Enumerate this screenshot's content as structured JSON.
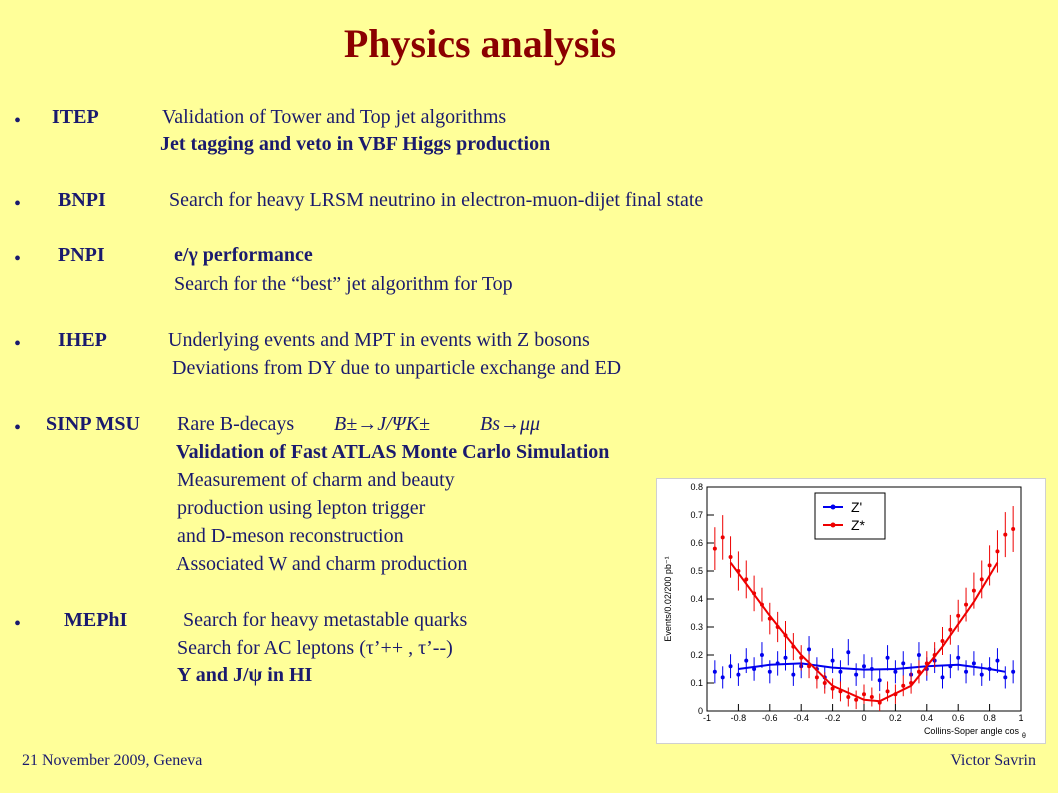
{
  "slide": {
    "title": "Physics analysis",
    "items": [
      {
        "bullet": "•",
        "institute": "ITEP",
        "lines": [
          "Validation of Tower and Top jet algorithms",
          "Jet tagging and veto in VBF Higgs production"
        ]
      },
      {
        "bullet": "•",
        "institute": "BNPI",
        "lines": [
          "Search for heavy LRSM neutrino in electron-muon-dijet final   state"
        ]
      },
      {
        "bullet": "•",
        "institute": "PNPI",
        "lines": [
          "e/γ performance",
          "Search for the “best” jet algorithm for Top"
        ]
      },
      {
        "bullet": "•",
        "institute": "IHEP",
        "lines": [
          "Underlying events and MPT in events with Z bosons",
          "Deviations from DY due to unparticle exchange and ED"
        ]
      },
      {
        "bullet": "•",
        "institute": "SINP MSU",
        "lines": [
          "Rare B-decays",
          "B±→J/ΨK±",
          "Bs→μμ",
          "Validation of Fast ATLAS Monte Carlo Simulation",
          "Measurement of charm and beauty",
          "production using lepton trigger",
          "and D-meson reconstruction",
          "Associated W and charm production"
        ]
      },
      {
        "bullet": "•",
        "institute": "MEPhI",
        "lines": [
          "Search for heavy metastable quarks",
          "Search for AC leptons (τ’++ , τ’--)",
          "Y and J/ψ in HI"
        ]
      }
    ],
    "footer_left": "21 November  2009, Geneva",
    "footer_right": "Victor Savrin"
  },
  "chart_data": {
    "type": "scatter",
    "ylabel": "Events/0.02/200 pb⁻¹",
    "xlabel": "Collins-Soper angle  cos",
    "xlabel_subscript": "θ",
    "xlim": [
      -1,
      1
    ],
    "ylim": [
      0,
      0.8
    ],
    "xticks": [
      "-1",
      "-0.8",
      "-0.6",
      "-0.4",
      "-0.2",
      "0",
      "0.2",
      "0.4",
      "0.6",
      "0.8",
      "1"
    ],
    "yticks": [
      "0",
      "0.1",
      "0.2",
      "0.3",
      "0.4",
      "0.5",
      "0.6",
      "0.7",
      "0.8"
    ],
    "legend_position": "top-right",
    "series": [
      {
        "name": "Z'",
        "color": "#0000ee",
        "x": [
          -0.95,
          -0.9,
          -0.85,
          -0.8,
          -0.75,
          -0.7,
          -0.65,
          -0.6,
          -0.55,
          -0.5,
          -0.45,
          -0.4,
          -0.35,
          -0.3,
          -0.25,
          -0.2,
          -0.15,
          -0.1,
          -0.05,
          0.0,
          0.05,
          0.1,
          0.15,
          0.2,
          0.25,
          0.3,
          0.35,
          0.4,
          0.45,
          0.5,
          0.55,
          0.6,
          0.65,
          0.7,
          0.75,
          0.8,
          0.85,
          0.9,
          0.95
        ],
        "y": [
          0.14,
          0.12,
          0.16,
          0.13,
          0.18,
          0.15,
          0.2,
          0.14,
          0.17,
          0.19,
          0.13,
          0.16,
          0.22,
          0.15,
          0.12,
          0.18,
          0.14,
          0.21,
          0.13,
          0.16,
          0.15,
          0.11,
          0.19,
          0.14,
          0.17,
          0.13,
          0.2,
          0.15,
          0.18,
          0.12,
          0.16,
          0.19,
          0.14,
          0.17,
          0.13,
          0.15,
          0.18,
          0.12,
          0.14
        ],
        "fit": [
          [
            -0.8,
            0.15
          ],
          [
            -0.6,
            0.165
          ],
          [
            -0.4,
            0.17
          ],
          [
            -0.2,
            0.155
          ],
          [
            0.0,
            0.148
          ],
          [
            0.2,
            0.15
          ],
          [
            0.4,
            0.16
          ],
          [
            0.6,
            0.165
          ],
          [
            0.8,
            0.15
          ],
          [
            0.9,
            0.14
          ]
        ]
      },
      {
        "name": "Z*",
        "color": "#ee0000",
        "x": [
          -0.95,
          -0.9,
          -0.85,
          -0.8,
          -0.75,
          -0.7,
          -0.65,
          -0.6,
          -0.55,
          -0.5,
          -0.45,
          -0.4,
          -0.35,
          -0.3,
          -0.25,
          -0.2,
          -0.15,
          -0.1,
          -0.05,
          0.0,
          0.05,
          0.1,
          0.15,
          0.2,
          0.25,
          0.3,
          0.35,
          0.4,
          0.45,
          0.5,
          0.55,
          0.6,
          0.65,
          0.7,
          0.75,
          0.8,
          0.85,
          0.9,
          0.95
        ],
        "y": [
          0.58,
          0.62,
          0.55,
          0.5,
          0.47,
          0.42,
          0.38,
          0.33,
          0.3,
          0.27,
          0.23,
          0.19,
          0.16,
          0.12,
          0.1,
          0.08,
          0.07,
          0.05,
          0.04,
          0.06,
          0.05,
          0.03,
          0.07,
          0.06,
          0.09,
          0.1,
          0.14,
          0.17,
          0.2,
          0.25,
          0.29,
          0.34,
          0.38,
          0.43,
          0.47,
          0.52,
          0.57,
          0.63,
          0.65
        ],
        "fit": [
          [
            -0.85,
            0.53
          ],
          [
            -0.6,
            0.34
          ],
          [
            -0.4,
            0.2
          ],
          [
            -0.2,
            0.09
          ],
          [
            0.0,
            0.04
          ],
          [
            0.1,
            0.035
          ],
          [
            0.3,
            0.09
          ],
          [
            0.5,
            0.23
          ],
          [
            0.7,
            0.39
          ],
          [
            0.85,
            0.53
          ]
        ]
      }
    ]
  }
}
